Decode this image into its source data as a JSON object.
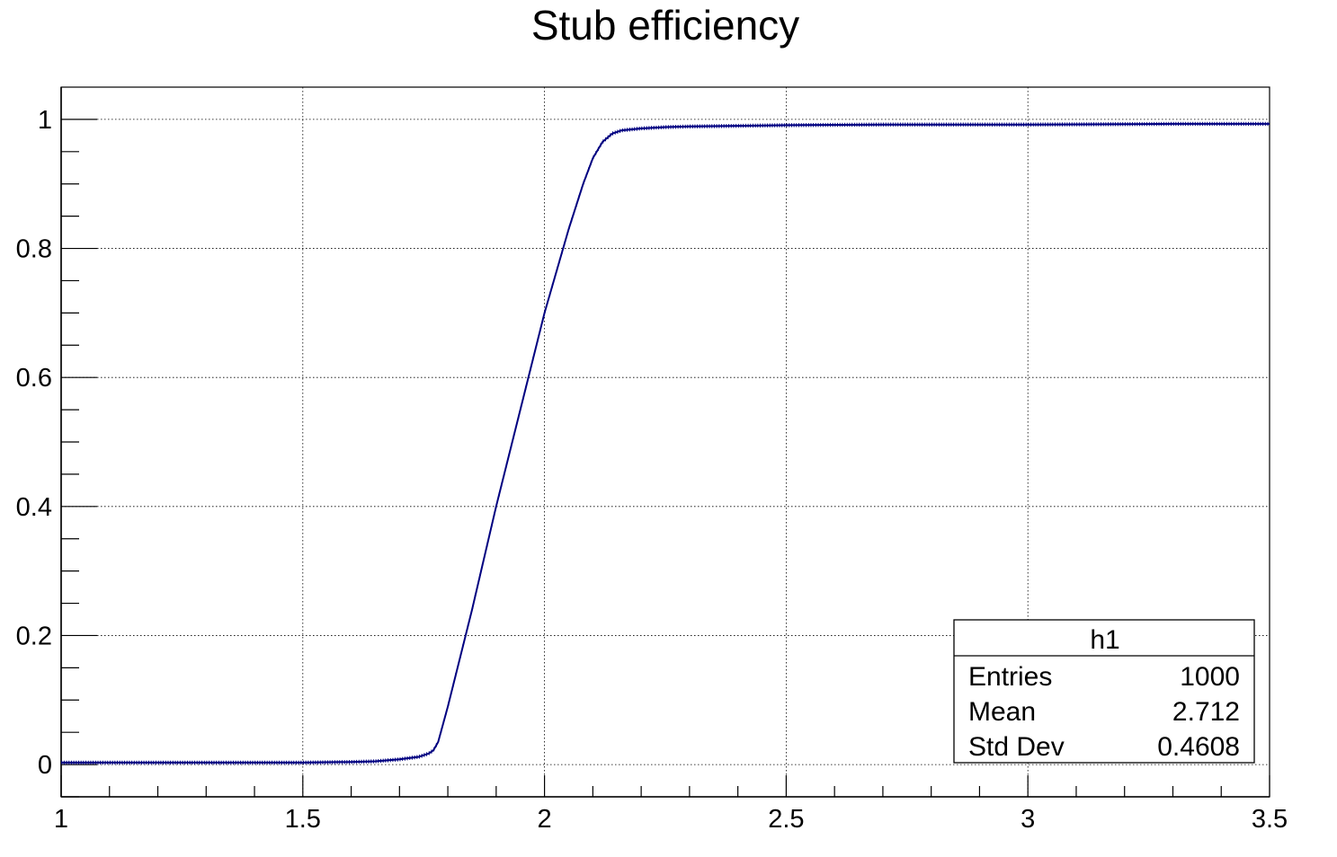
{
  "chart_data": {
    "type": "line",
    "title": "Stub efficiency",
    "xlabel": "",
    "ylabel": "",
    "xlim": [
      1,
      3.5
    ],
    "ylim": [
      -0.05,
      1.05
    ],
    "x_ticks": [
      "1",
      "1.5",
      "2",
      "2.5",
      "3",
      "3.5"
    ],
    "y_ticks": [
      "0",
      "0.2",
      "0.4",
      "0.6",
      "0.8",
      "1"
    ],
    "grid": true,
    "series": [
      {
        "color": "#000080",
        "x": [
          1.0,
          1.1,
          1.2,
          1.3,
          1.4,
          1.5,
          1.6,
          1.65,
          1.7,
          1.74,
          1.76,
          1.77,
          1.78,
          1.8,
          1.85,
          1.9,
          1.95,
          2.0,
          2.05,
          2.08,
          2.1,
          2.12,
          2.14,
          2.16,
          2.2,
          2.25,
          2.3,
          2.4,
          2.5,
          2.7,
          3.0,
          3.3,
          3.5
        ],
        "y": [
          0.003,
          0.003,
          0.003,
          0.003,
          0.003,
          0.003,
          0.004,
          0.005,
          0.008,
          0.012,
          0.017,
          0.022,
          0.035,
          0.09,
          0.24,
          0.4,
          0.55,
          0.7,
          0.83,
          0.9,
          0.94,
          0.965,
          0.978,
          0.983,
          0.986,
          0.988,
          0.989,
          0.99,
          0.991,
          0.992,
          0.992,
          0.993,
          0.993
        ]
      }
    ],
    "stats_box": {
      "name": "h1",
      "rows": [
        {
          "label": "Entries",
          "value": "1000"
        },
        {
          "label": "Mean",
          "value": "2.712"
        },
        {
          "label": "Std Dev",
          "value": "0.4608"
        }
      ],
      "placement": "bottom-right"
    }
  }
}
